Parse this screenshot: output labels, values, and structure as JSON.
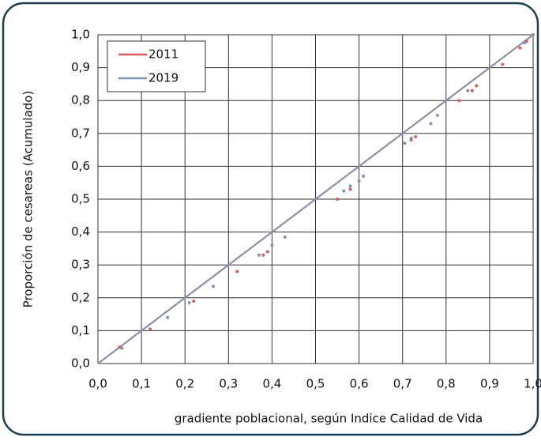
{
  "chart_data": {
    "type": "scatter",
    "xlabel": "gradiente poblacional, según Indice Calidad de Vida",
    "ylabel": "Proporción de cesareas (Acumulado)",
    "xlim": [
      0,
      1
    ],
    "ylim": [
      0,
      1
    ],
    "xticks": [
      {
        "value": 0,
        "label": "0,0"
      },
      {
        "value": 0.1,
        "label": "0,1"
      },
      {
        "value": 0.2,
        "label": "0,2"
      },
      {
        "value": 0.3,
        "label": "0,3"
      },
      {
        "value": 0.4,
        "label": "0,4"
      },
      {
        "value": 0.5,
        "label": "0,5"
      },
      {
        "value": 0.6,
        "label": "0,6"
      },
      {
        "value": 0.7,
        "label": "0,7"
      },
      {
        "value": 0.8,
        "label": "0,8"
      },
      {
        "value": 0.9,
        "label": "0,9"
      },
      {
        "value": 1,
        "label": "1,0"
      }
    ],
    "yticks": [
      {
        "value": 0,
        "label": "0,0"
      },
      {
        "value": 0.1,
        "label": "0,1"
      },
      {
        "value": 0.2,
        "label": "0,2"
      },
      {
        "value": 0.3,
        "label": "0,3"
      },
      {
        "value": 0.4,
        "label": "0,4"
      },
      {
        "value": 0.5,
        "label": "0,5"
      },
      {
        "value": 0.6,
        "label": "0,6"
      },
      {
        "value": 0.7,
        "label": "0,7"
      },
      {
        "value": 0.8,
        "label": "0,8"
      },
      {
        "value": 0.9,
        "label": "0,9"
      },
      {
        "value": 1,
        "label": "1,0"
      }
    ],
    "grid": true,
    "legend": "upper-left",
    "reference_line": {
      "x": [
        0,
        1
      ],
      "values": [
        0,
        1
      ]
    },
    "series": [
      {
        "name": "2011",
        "color": "#e05a5a",
        "x": [
          0.05,
          0.12,
          0.22,
          0.32,
          0.38,
          0.39,
          0.55,
          0.58,
          0.72,
          0.73,
          0.83,
          0.86,
          0.87,
          0.93,
          0.97,
          0.985
        ],
        "values": [
          0.05,
          0.105,
          0.19,
          0.28,
          0.33,
          0.34,
          0.5,
          0.53,
          0.68,
          0.69,
          0.8,
          0.83,
          0.845,
          0.91,
          0.96,
          0.98
        ]
      },
      {
        "name": "2019",
        "color": "#7f92b0",
        "x": [
          0.055,
          0.16,
          0.21,
          0.265,
          0.37,
          0.4,
          0.43,
          0.565,
          0.58,
          0.6,
          0.61,
          0.705,
          0.72,
          0.765,
          0.78,
          0.85,
          0.98,
          1
        ],
        "values": [
          0.047,
          0.14,
          0.185,
          0.235,
          0.33,
          0.36,
          0.385,
          0.525,
          0.54,
          0.555,
          0.57,
          0.67,
          0.685,
          0.73,
          0.755,
          0.83,
          0.975,
          1
        ]
      }
    ]
  }
}
